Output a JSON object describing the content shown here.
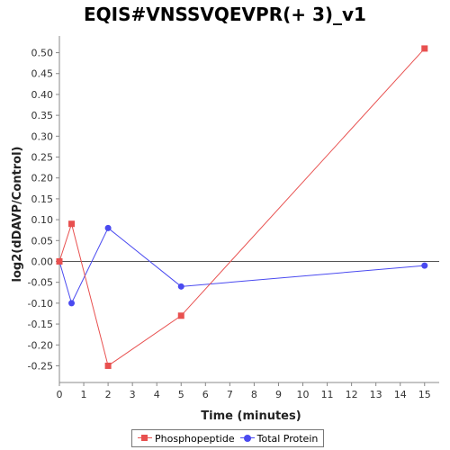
{
  "chart_data": {
    "type": "line",
    "title": "EQIS#VNSSVQEVPR(+ 3)_v1",
    "xlabel": "Time (minutes)",
    "ylabel": "log2(dDAVP/Control)",
    "xlim": [
      0,
      15.6
    ],
    "ylim": [
      -0.29,
      0.54
    ],
    "xticks": [
      0,
      1,
      2,
      3,
      4,
      5,
      6,
      7,
      8,
      9,
      10,
      11,
      12,
      13,
      14,
      15
    ],
    "yticks": [
      -0.25,
      -0.2,
      -0.15,
      -0.1,
      -0.05,
      0.0,
      0.05,
      0.1,
      0.15,
      0.2,
      0.25,
      0.3,
      0.35,
      0.4,
      0.45,
      0.5
    ],
    "ytick_labels": [
      "-0.25",
      "-0.20",
      "-0.15",
      "-0.10",
      "-0.05",
      "0.00",
      "0.05",
      "0.10",
      "0.15",
      "0.20",
      "0.25",
      "0.30",
      "0.35",
      "0.40",
      "0.45",
      "0.50"
    ],
    "zero_line": true,
    "grid": false,
    "legend_position": "bottom",
    "series": [
      {
        "name": "Phosphopeptide",
        "color": "#e8504f",
        "marker": "square",
        "x": [
          0,
          0.5,
          2,
          5,
          15
        ],
        "y": [
          0.0,
          0.09,
          -0.25,
          -0.13,
          0.51
        ]
      },
      {
        "name": "Total Protein",
        "color": "#4a4af0",
        "marker": "circle",
        "x": [
          0,
          0.5,
          2,
          5,
          15
        ],
        "y": [
          0.0,
          -0.1,
          0.08,
          -0.06,
          -0.01
        ]
      }
    ]
  }
}
